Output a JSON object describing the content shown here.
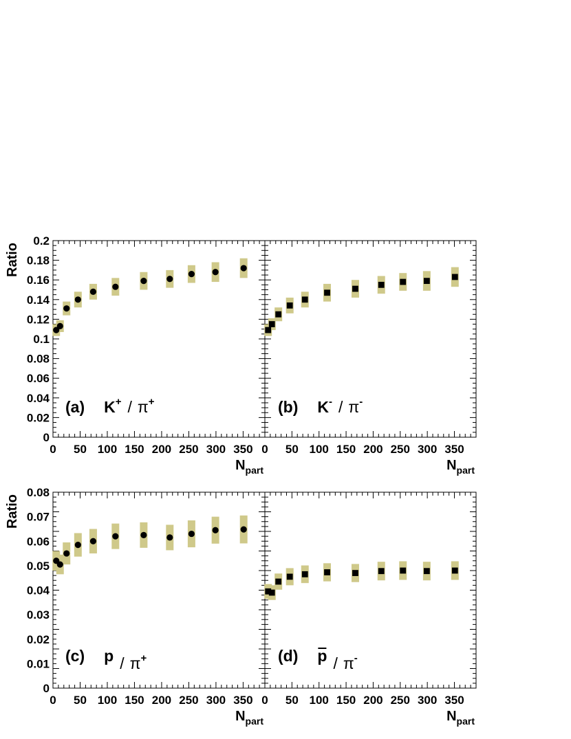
{
  "chart_data": [
    {
      "type": "scatter",
      "panel": "(a)",
      "numerator": "K",
      "numerator_charge": "+",
      "denominator": "π",
      "denominator_charge": "+",
      "bar_over_numerator": false,
      "marker": "circle",
      "xlabel": "N",
      "xlabel_sub": "part",
      "ylabel": "Ratio",
      "xlim": [
        0,
        390
      ],
      "ylim": [
        0,
        0.2
      ],
      "x_ticks": [
        "0",
        "50",
        "100",
        "150",
        "200",
        "250",
        "300",
        "350"
      ],
      "y_ticks": [
        "0",
        "0.02",
        "0.04",
        "0.06",
        "0.08",
        "0.1",
        "0.12",
        "0.14",
        "0.16",
        "0.18",
        "0.2"
      ],
      "x": [
        6,
        13,
        25,
        46,
        74,
        115,
        167,
        215,
        255,
        299,
        351
      ],
      "y": [
        0.109,
        0.113,
        0.131,
        0.14,
        0.148,
        0.153,
        0.159,
        0.161,
        0.166,
        0.168,
        0.172
      ],
      "syst": [
        0.006,
        0.006,
        0.007,
        0.008,
        0.008,
        0.009,
        0.009,
        0.009,
        0.009,
        0.01,
        0.01
      ]
    },
    {
      "type": "scatter",
      "panel": "(b)",
      "numerator": "K",
      "numerator_charge": "-",
      "denominator": "π",
      "denominator_charge": "-",
      "bar_over_numerator": false,
      "marker": "square",
      "xlabel": "N",
      "xlabel_sub": "part",
      "ylabel": "",
      "xlim": [
        0,
        390
      ],
      "ylim": [
        0,
        0.2
      ],
      "x_ticks": [
        "0",
        "50",
        "100",
        "150",
        "200",
        "250",
        "300",
        "350"
      ],
      "y_ticks": [],
      "x": [
        6,
        13,
        25,
        46,
        74,
        115,
        167,
        215,
        255,
        299,
        351
      ],
      "y": [
        0.109,
        0.115,
        0.125,
        0.134,
        0.14,
        0.147,
        0.151,
        0.155,
        0.158,
        0.159,
        0.163
      ],
      "syst": [
        0.006,
        0.006,
        0.007,
        0.008,
        0.008,
        0.009,
        0.009,
        0.009,
        0.009,
        0.01,
        0.01
      ]
    },
    {
      "type": "scatter",
      "panel": "(c)",
      "numerator": "p",
      "numerator_charge": "",
      "denominator": "π",
      "denominator_charge": "+",
      "bar_over_numerator": false,
      "marker": "circle",
      "xlabel": "N",
      "xlabel_sub": "part",
      "ylabel": "Ratio",
      "xlim": [
        0,
        390
      ],
      "ylim": [
        0,
        0.08
      ],
      "x_ticks": [
        "0",
        "50",
        "100",
        "150",
        "200",
        "250",
        "300",
        "350"
      ],
      "y_ticks": [
        "0",
        "0.01",
        "0.02",
        "0.03",
        "0.04",
        "0.05",
        "0.06",
        "0.07",
        "0.08"
      ],
      "x": [
        6,
        13,
        25,
        46,
        74,
        115,
        167,
        215,
        255,
        299,
        351
      ],
      "y": [
        0.052,
        0.0505,
        0.055,
        0.0585,
        0.06,
        0.062,
        0.0625,
        0.0615,
        0.063,
        0.0645,
        0.0648
      ],
      "syst": [
        0.004,
        0.004,
        0.0045,
        0.0048,
        0.005,
        0.0052,
        0.0052,
        0.0052,
        0.0055,
        0.0055,
        0.0057
      ]
    },
    {
      "type": "scatter",
      "panel": "(d)",
      "numerator": "p",
      "numerator_charge": "",
      "denominator": "π",
      "denominator_charge": "-",
      "bar_over_numerator": true,
      "marker": "square",
      "xlabel": "N",
      "xlabel_sub": "part",
      "ylabel": "",
      "xlim": [
        0,
        390
      ],
      "ylim": [
        0,
        0.08
      ],
      "x_ticks": [
        "0",
        "50",
        "100",
        "150",
        "200",
        "250",
        "300",
        "350"
      ],
      "y_ticks": [],
      "x": [
        6,
        13,
        25,
        46,
        74,
        115,
        167,
        215,
        255,
        299,
        351
      ],
      "y": [
        0.0395,
        0.039,
        0.0435,
        0.0455,
        0.0465,
        0.0473,
        0.047,
        0.0478,
        0.048,
        0.0478,
        0.048
      ],
      "syst": [
        0.003,
        0.003,
        0.0033,
        0.0035,
        0.0036,
        0.0037,
        0.0037,
        0.0038,
        0.0038,
        0.0038,
        0.0038
      ]
    }
  ],
  "colors": {
    "syst_band": "#cfc98a",
    "marker": "#000000",
    "axis": "#000000",
    "background": "#ffffff"
  }
}
